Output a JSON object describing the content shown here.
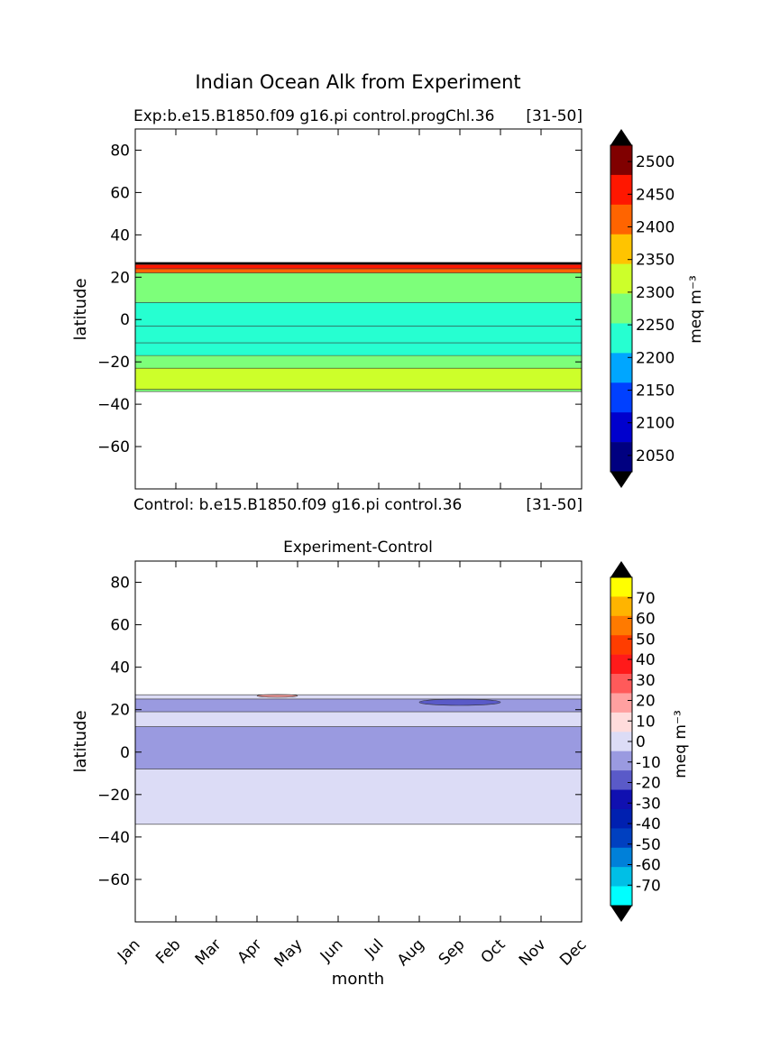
{
  "figure": {
    "suptitle": "Indian Ocean Alk from Experiment"
  },
  "panels": {
    "top": {
      "title_left": "Exp:b.e15.B1850.f09 g16.pi control.progChl.36",
      "title_right": "[31-50]",
      "bottom_left": "Control: b.e15.B1850.f09 g16.pi control.36",
      "bottom_right": "[31-50]",
      "ylabel": "latitude",
      "yticks": [
        "80",
        "60",
        "40",
        "20",
        "0",
        "−20",
        "−40",
        "−60"
      ],
      "colorbar": {
        "label": "meq m⁻³",
        "ticks": [
          "2500",
          "2450",
          "2400",
          "2350",
          "2300",
          "2250",
          "2200",
          "2150",
          "2100",
          "2050"
        ]
      }
    },
    "bottom": {
      "title": "Experiment-Control",
      "ylabel": "latitude",
      "xlabel": "month",
      "yticks": [
        "80",
        "60",
        "40",
        "20",
        "0",
        "−20",
        "−40",
        "−60"
      ],
      "xticks": [
        "Jan",
        "Feb",
        "Mar",
        "Apr",
        "May",
        "Jun",
        "Jul",
        "Aug",
        "Sep",
        "Oct",
        "Nov",
        "Dec"
      ],
      "colorbar": {
        "label": "meq m⁻³",
        "ticks": [
          "70",
          "60",
          "50",
          "40",
          "30",
          "20",
          "10",
          "0",
          "-10",
          "-20",
          "-30",
          "-40",
          "-50",
          "-60",
          "-70"
        ]
      }
    }
  },
  "chart_data": [
    {
      "type": "heatmap",
      "subtype": "filled-contour",
      "title": "Exp:b.e15.B1850.f09 g16.pi control.progChl.36",
      "xlabel": "",
      "ylabel": "latitude",
      "x": [
        "Jan",
        "Feb",
        "Mar",
        "Apr",
        "May",
        "Jun",
        "Jul",
        "Aug",
        "Sep",
        "Oct",
        "Nov",
        "Dec"
      ],
      "ylim": [
        -80,
        90
      ],
      "yticks": [
        80,
        60,
        40,
        20,
        0,
        -20,
        -40,
        -60
      ],
      "levels": [
        2025,
        2075,
        2125,
        2175,
        2225,
        2275,
        2325,
        2375,
        2425,
        2475,
        2525
      ],
      "level_colors": [
        "#000080",
        "#0000cd",
        "#0040ff",
        "#00a6ff",
        "#26ffd1",
        "#7dff7a",
        "#cdff2a",
        "#ffc400",
        "#ff6400",
        "#ff1700",
        "#800000"
      ],
      "extend_colors": {
        "over": "#000000",
        "under": "#000000"
      },
      "colorbar_label": "meq m⁻³",
      "colorbar_ticks": [
        2500,
        2450,
        2400,
        2350,
        2300,
        2250,
        2200,
        2150,
        2100,
        2050
      ],
      "bands": [
        {
          "lat": [
            26,
            27
          ],
          "value": 2525
        },
        {
          "lat": [
            24,
            26
          ],
          "value": 2500
        },
        {
          "lat": [
            22,
            24
          ],
          "value": 2425
        },
        {
          "lat": [
            8,
            22
          ],
          "value": 2300
        },
        {
          "lat": [
            -3,
            8
          ],
          "value": 2250
        },
        {
          "lat": [
            -11,
            -3
          ],
          "value": 2225
        },
        {
          "lat": [
            -17,
            -11
          ],
          "value": 2250
        },
        {
          "lat": [
            -23,
            -17
          ],
          "value": 2300
        },
        {
          "lat": [
            -33,
            -23
          ],
          "value": 2350
        },
        {
          "lat": [
            -34,
            -33
          ],
          "value": 2300
        }
      ]
    },
    {
      "type": "heatmap",
      "subtype": "filled-contour",
      "title": "Experiment-Control",
      "xlabel": "month",
      "ylabel": "latitude",
      "x": [
        "Jan",
        "Feb",
        "Mar",
        "Apr",
        "May",
        "Jun",
        "Jul",
        "Aug",
        "Sep",
        "Oct",
        "Nov",
        "Dec"
      ],
      "ylim": [
        -80,
        90
      ],
      "yticks": [
        80,
        60,
        40,
        20,
        0,
        -20,
        -40,
        -60
      ],
      "levels": [
        -80,
        -70,
        -60,
        -50,
        -40,
        -30,
        -20,
        -10,
        0,
        10,
        20,
        30,
        40,
        50,
        60,
        70,
        80
      ],
      "level_colors": [
        "#00ffff",
        "#00bfe6",
        "#0080d9",
        "#0040c0",
        "#0020b0",
        "#1010b0",
        "#5a5ac8",
        "#9a9ae0",
        "#dcdcf6",
        "#ffdcdc",
        "#ffa0a0",
        "#ff5a5a",
        "#ff1a1a",
        "#ff3d00",
        "#ff7a00",
        "#ffb400",
        "#ffff00"
      ],
      "extend_colors": {
        "over": "#000000",
        "under": "#000000"
      },
      "colorbar_label": "meq m⁻³",
      "colorbar_ticks": [
        70,
        60,
        50,
        40,
        30,
        20,
        10,
        0,
        -10,
        -20,
        -30,
        -40,
        -50,
        -60,
        -70
      ],
      "bands": [
        {
          "lat": [
            25,
            27
          ],
          "value": 5
        },
        {
          "lat": [
            19,
            25
          ],
          "value": -5
        },
        {
          "lat": [
            12,
            19
          ],
          "value": 5
        },
        {
          "lat": [
            -8,
            12
          ],
          "value": -5
        },
        {
          "lat": [
            -34,
            -8
          ],
          "value": 5
        }
      ],
      "features": [
        {
          "note": "negative patch",
          "lat": [
            22,
            25
          ],
          "months": [
            "Aug",
            "Oct"
          ],
          "value": -15
        },
        {
          "note": "positive patch",
          "lat": [
            26,
            27
          ],
          "months": [
            "Apr",
            "May"
          ],
          "value": 25
        }
      ]
    }
  ]
}
